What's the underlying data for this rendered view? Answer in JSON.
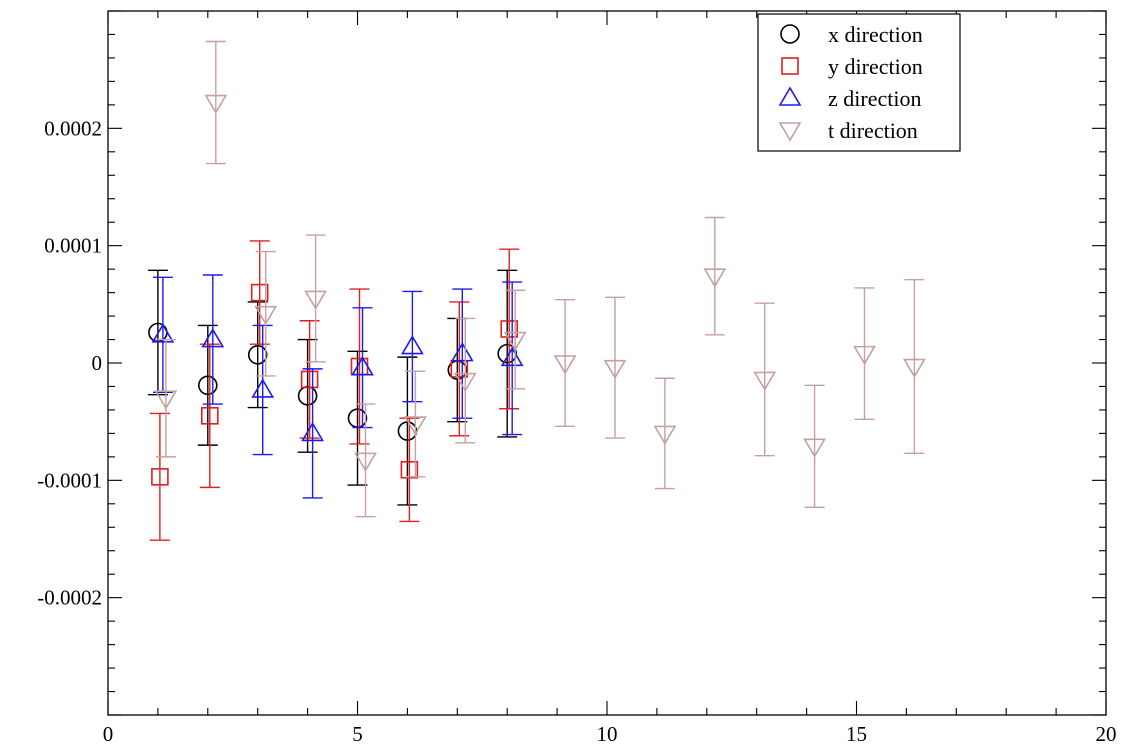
{
  "chart_data": {
    "type": "scatter",
    "title": "",
    "xlabel": "",
    "ylabel": "",
    "xlim": [
      0,
      20
    ],
    "ylim": [
      -0.0003,
      0.0003
    ],
    "xticks": [
      {
        "v": 0,
        "label": "0"
      },
      {
        "v": 5,
        "label": "5"
      },
      {
        "v": 10,
        "label": "10"
      },
      {
        "v": 15,
        "label": "15"
      },
      {
        "v": 20,
        "label": "20"
      }
    ],
    "yticks": [
      {
        "v": 0.0002,
        "label": "0.0002"
      },
      {
        "v": 0.0001,
        "label": "0.0001"
      },
      {
        "v": 0,
        "label": "0"
      },
      {
        "v": -0.0001,
        "label": "-0.0001"
      },
      {
        "v": -0.0002,
        "label": "-0.0002"
      }
    ],
    "legend_position": "top-right",
    "error_bars": true,
    "series": [
      {
        "name": "x direction",
        "marker": "circle",
        "color": "#000000",
        "x": [
          1,
          2,
          3,
          4,
          5,
          6,
          7,
          8
        ],
        "y": [
          2.6e-05,
          -1.9e-05,
          7e-06,
          -2.8e-05,
          -4.7e-05,
          -5.8e-05,
          -6e-06,
          8e-06
        ],
        "err": [
          5.3e-05,
          5.1e-05,
          4.5e-05,
          4.8e-05,
          5.7e-05,
          6.3e-05,
          4.4e-05,
          7.1e-05
        ]
      },
      {
        "name": "y direction",
        "marker": "square",
        "color": "#e02020",
        "x": [
          1,
          2,
          3,
          4,
          5,
          6,
          7,
          8
        ],
        "y": [
          -9.7e-05,
          -4.5e-05,
          6e-05,
          -1.4e-05,
          -3e-06,
          -9.1e-05,
          -5e-06,
          2.9e-05
        ],
        "err": [
          5.4e-05,
          6.1e-05,
          4.4e-05,
          5e-05,
          6.6e-05,
          4.4e-05,
          5.7e-05,
          6.8e-05
        ]
      },
      {
        "name": "z direction",
        "marker": "triangle-up",
        "color": "#1c1cf0",
        "x": [
          1,
          2,
          3,
          4,
          5,
          6,
          7,
          8
        ],
        "y": [
          2.4e-05,
          2e-05,
          -2.3e-05,
          -6e-05,
          -4e-06,
          1.4e-05,
          8e-06,
          4e-06
        ],
        "err": [
          4.9e-05,
          5.5e-05,
          5.5e-05,
          5.5e-05,
          5.1e-05,
          4.7e-05,
          5.5e-05,
          6.5e-05
        ]
      },
      {
        "name": "t direction",
        "marker": "triangle-down",
        "color": "#c4a0a0",
        "x": [
          1,
          2,
          3,
          4,
          5,
          6,
          7,
          8,
          9,
          10,
          11,
          12,
          13,
          14,
          15,
          16
        ],
        "y": [
          -3e-05,
          0.000222,
          4.2e-05,
          5.5e-05,
          -8.3e-05,
          -5.2e-05,
          -1.5e-05,
          2e-05,
          0.0,
          -4e-06,
          -6e-05,
          7.4e-05,
          -1.4e-05,
          -7.1e-05,
          8e-06,
          -3e-06
        ],
        "err": [
          5e-05,
          5.2e-05,
          5.3e-05,
          5.4e-05,
          4.8e-05,
          4.5e-05,
          5.3e-05,
          4.2e-05,
          5.4e-05,
          6e-05,
          4.7e-05,
          5e-05,
          6.5e-05,
          5.2e-05,
          5.6e-05,
          7.4e-05
        ]
      }
    ]
  }
}
